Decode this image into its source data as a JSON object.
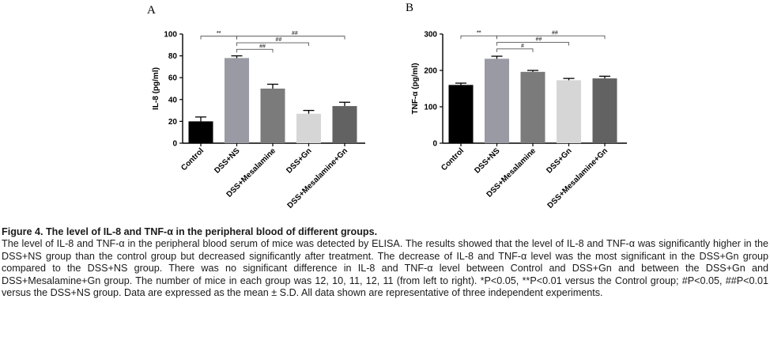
{
  "chart_data": [
    {
      "type": "bar",
      "panel": "A",
      "ylabel": "IL-8 (pg/ml)",
      "ylim": [
        0,
        100
      ],
      "yticks": [
        0,
        20,
        40,
        60,
        80,
        100
      ],
      "categories": [
        "Control",
        "DSS+NS",
        "DSS+Mesalamine",
        "DSS+Gn",
        "DSS+Mesalamine+Gn"
      ],
      "values": [
        20,
        78,
        50,
        27,
        34
      ],
      "errors": [
        4,
        2,
        4,
        3,
        3.5
      ],
      "colors": [
        "#000000",
        "#9a9aa4",
        "#7b7b7b",
        "#d6d6d6",
        "#626262"
      ],
      "brackets": [
        {
          "from": 0,
          "to": 1,
          "y": 98,
          "label": "**"
        },
        {
          "from": 1,
          "to": 4,
          "y": 98,
          "label": "##"
        },
        {
          "from": 1,
          "to": 3,
          "y": 92,
          "label": "##"
        },
        {
          "from": 1,
          "to": 2,
          "y": 86,
          "label": "##"
        }
      ]
    },
    {
      "type": "bar",
      "panel": "B",
      "ylabel": "TNF-α (pg/ml)",
      "ylim": [
        0,
        300
      ],
      "yticks": [
        0,
        100,
        200,
        300
      ],
      "categories": [
        "Control",
        "DSS+NS",
        "DSS+Mesalamine",
        "DSS+Gn",
        "DSS+Mesalamine+Gn"
      ],
      "values": [
        160,
        232,
        196,
        173,
        178
      ],
      "errors": [
        5,
        7,
        4,
        5,
        6
      ],
      "colors": [
        "#000000",
        "#9a9aa4",
        "#7b7b7b",
        "#d6d6d6",
        "#626262"
      ],
      "brackets": [
        {
          "from": 0,
          "to": 1,
          "y": 295,
          "label": "**"
        },
        {
          "from": 1,
          "to": 4,
          "y": 295,
          "label": "##"
        },
        {
          "from": 1,
          "to": 3,
          "y": 277,
          "label": "##"
        },
        {
          "from": 1,
          "to": 2,
          "y": 259,
          "label": "#"
        }
      ]
    }
  ],
  "caption": {
    "title": "Figure 4. The level of IL-8 and TNF-α in the peripheral blood of different groups.",
    "body": "The level of IL-8 and TNF-α in the peripheral blood serum of mice was detected by ELISA. The results showed that the level of IL-8 and TNF-α was significantly higher in the DSS+NS group than the control group but decreased significantly after treatment. The decrease of IL-8 and TNF-α level was the most significant in the DSS+Gn group compared to the DSS+NS group. There was no significant difference in IL-8 and TNF-α level between Control and DSS+Gn and between the DSS+Gn and DSS+Mesalamine+Gn group. The number of mice in each group was 12, 10, 11, 12, 11 (from left to right). *P<0.05, **P<0.01 versus the Control group; #P<0.05, ##P<0.01 versus the DSS+NS group. Data are expressed as the mean ± S.D. All data shown are representative of three independent experiments."
  }
}
